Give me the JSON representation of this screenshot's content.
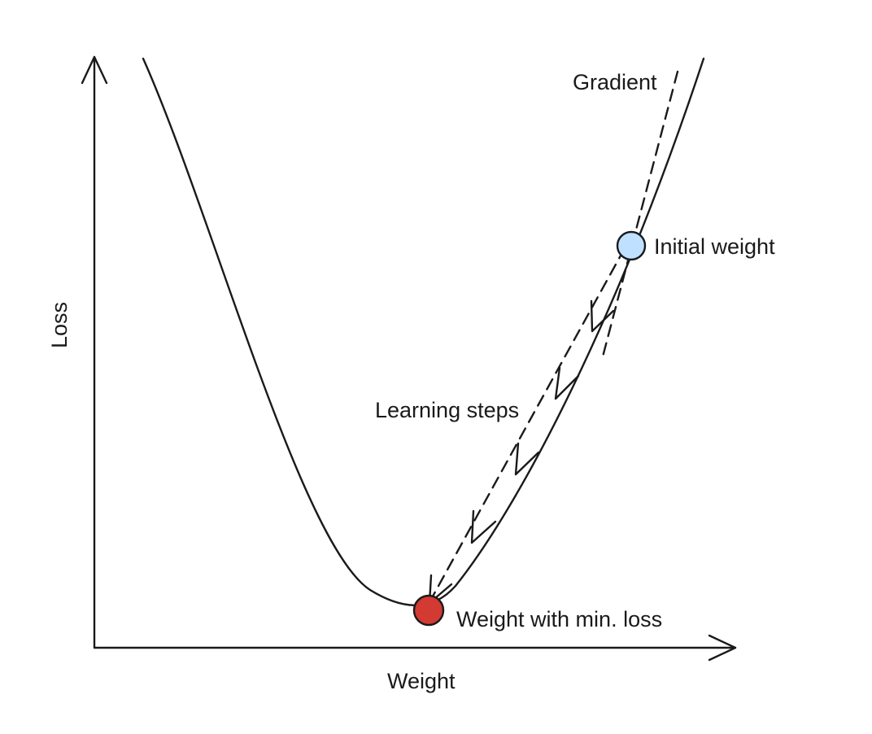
{
  "diagram": {
    "axes": {
      "y_label": "Loss",
      "x_label": "Weight"
    },
    "annotations": {
      "gradient": "Gradient",
      "initial_weight": "Initial weight",
      "learning_steps": "Learning steps",
      "min_loss": "Weight with min. loss"
    },
    "colors": {
      "initial_point": "#bfe0ff",
      "min_point": "#d23a32",
      "ink": "#1a1a1a"
    }
  }
}
